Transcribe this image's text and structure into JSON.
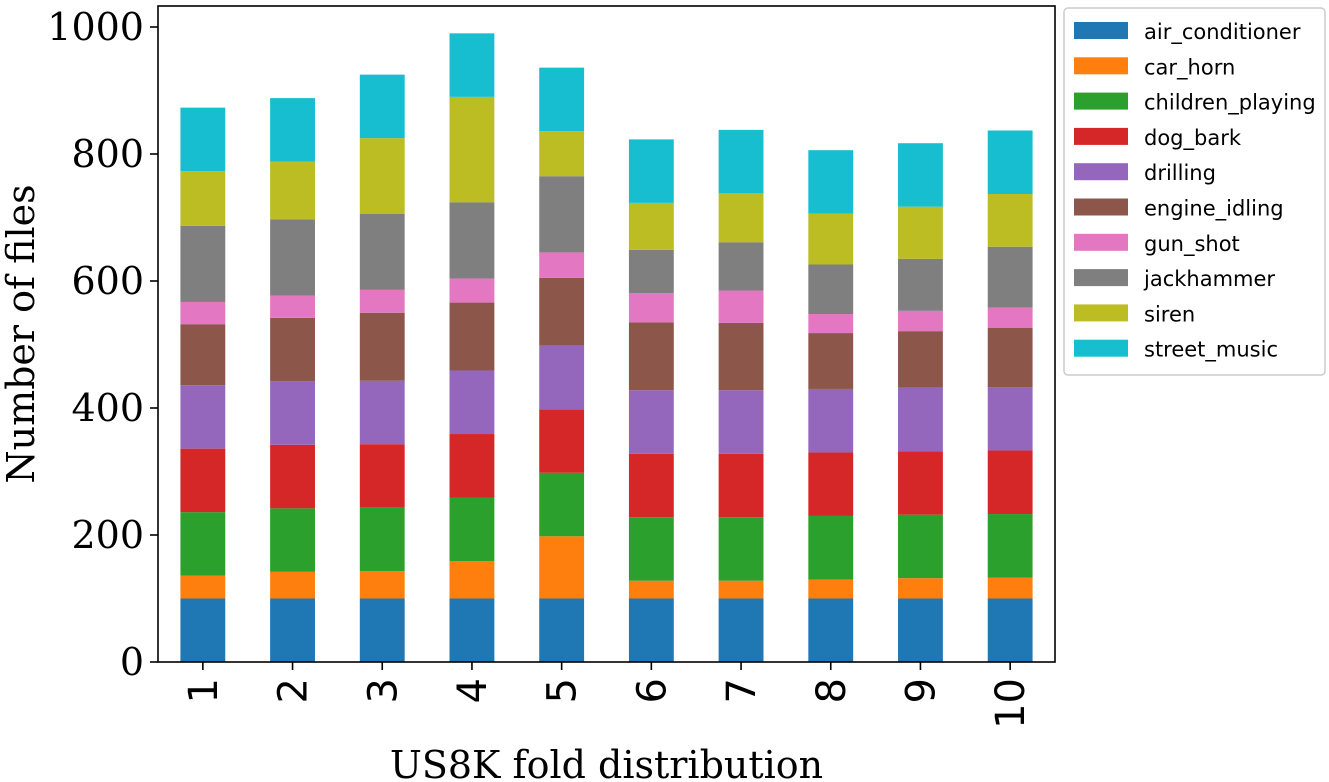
{
  "chart_data": {
    "type": "bar",
    "stacked": true,
    "title": "",
    "xlabel": "US8K fold distribution",
    "ylabel": "Number of files",
    "ylim": [
      0,
      1000
    ],
    "yticks": [
      0,
      200,
      400,
      600,
      800,
      1000
    ],
    "categories": [
      "1",
      "2",
      "3",
      "4",
      "5",
      "6",
      "7",
      "8",
      "9",
      "10"
    ],
    "legend_position": "outside-top-right",
    "grid": false,
    "series": [
      {
        "name": "air_conditioner",
        "color": "#1f77b4",
        "values": [
          100,
          100,
          100,
          100,
          100,
          100,
          100,
          100,
          100,
          100
        ]
      },
      {
        "name": "car_horn",
        "color": "#ff7f0e",
        "values": [
          36,
          42,
          43,
          59,
          98,
          28,
          28,
          30,
          32,
          33
        ]
      },
      {
        "name": "children_playing",
        "color": "#2ca02c",
        "values": [
          100,
          100,
          100,
          100,
          100,
          100,
          100,
          100,
          100,
          100
        ]
      },
      {
        "name": "dog_bark",
        "color": "#d62728",
        "values": [
          100,
          100,
          100,
          100,
          100,
          100,
          100,
          100,
          100,
          100
        ]
      },
      {
        "name": "drilling",
        "color": "#9467bd",
        "values": [
          100,
          100,
          100,
          100,
          100,
          100,
          100,
          100,
          100,
          100
        ]
      },
      {
        "name": "engine_idling",
        "color": "#8c564b",
        "values": [
          96,
          100,
          107,
          107,
          107,
          107,
          106,
          88,
          89,
          93
        ]
      },
      {
        "name": "gun_shot",
        "color": "#e377c2",
        "values": [
          35,
          35,
          36,
          38,
          40,
          46,
          51,
          30,
          32,
          32
        ]
      },
      {
        "name": "jackhammer",
        "color": "#7f7f7f",
        "values": [
          120,
          120,
          120,
          120,
          120,
          68,
          76,
          78,
          82,
          96
        ]
      },
      {
        "name": "siren",
        "color": "#bcbd22",
        "values": [
          86,
          91,
          119,
          166,
          71,
          74,
          77,
          80,
          82,
          83
        ]
      },
      {
        "name": "street_music",
        "color": "#17becf",
        "values": [
          100,
          100,
          100,
          100,
          100,
          100,
          100,
          100,
          100,
          100
        ]
      }
    ]
  }
}
